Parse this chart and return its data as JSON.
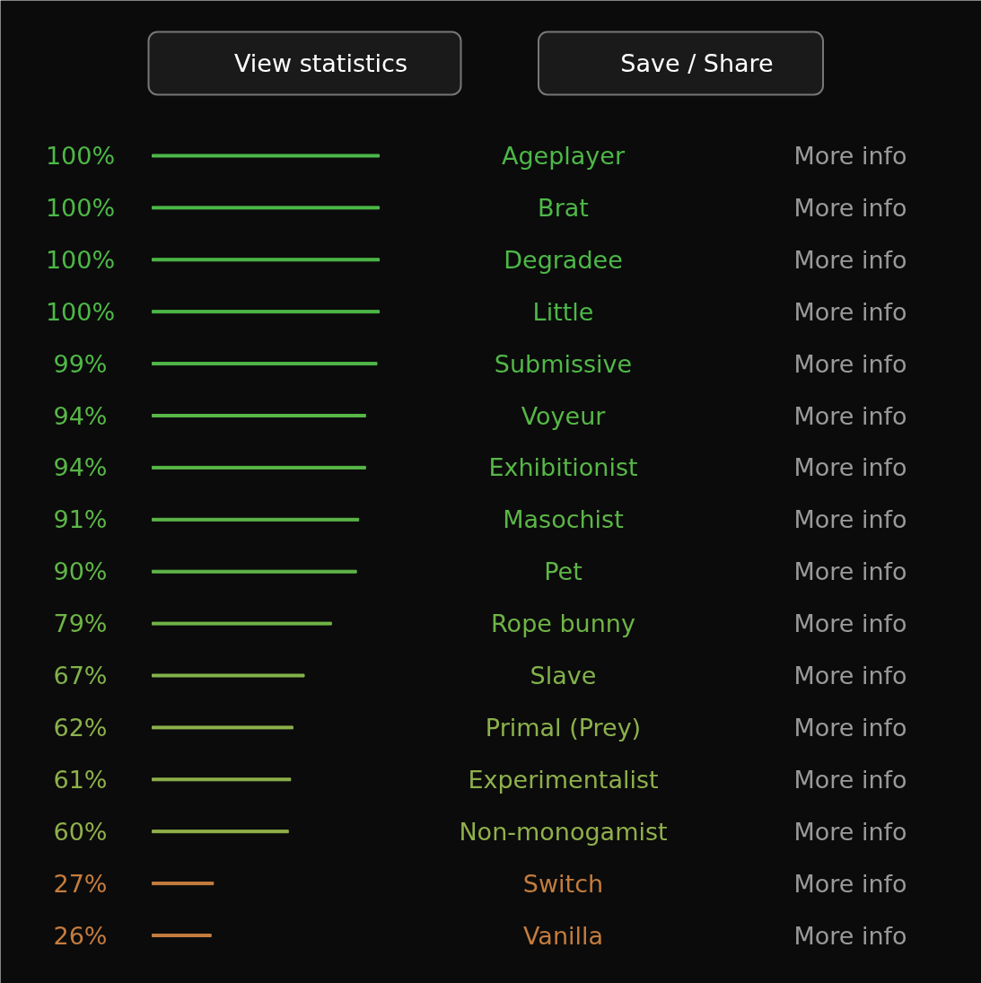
{
  "chart_data": {
    "type": "bar",
    "orientation": "horizontal",
    "categories": [
      "Ageplayer",
      "Brat",
      "Degradee",
      "Little",
      "Submissive",
      "Voyeur",
      "Exhibitionist",
      "Masochist",
      "Pet",
      "Rope bunny",
      "Slave",
      "Primal (Prey)",
      "Experimentalist",
      "Non-monogamist",
      "Switch",
      "Vanilla"
    ],
    "values": [
      100,
      100,
      100,
      100,
      99,
      94,
      94,
      91,
      90,
      79,
      67,
      62,
      61,
      60,
      27,
      26
    ],
    "value_labels": [
      "100%",
      "100%",
      "100%",
      "100%",
      "99%",
      "94%",
      "94%",
      "91%",
      "90%",
      "79%",
      "67%",
      "62%",
      "61%",
      "60%",
      "27%",
      "26%"
    ],
    "colors": [
      "#4db848",
      "#4db848",
      "#4db848",
      "#4db848",
      "#50b848",
      "#57b747",
      "#57b747",
      "#5cb647",
      "#5eb647",
      "#6fb446",
      "#82b24a",
      "#8cb14b",
      "#8eb04b",
      "#90b04b",
      "#c47c3e",
      "#c47c3e"
    ],
    "annotations": [
      "View statistics",
      "Save / Share",
      "More info",
      "More info",
      "More info",
      "More info",
      "More info",
      "More info",
      "More info",
      "More info",
      "More info",
      "More info",
      "More info",
      "More info",
      "More info",
      "More info",
      "More info",
      "More info"
    ]
  }
}
